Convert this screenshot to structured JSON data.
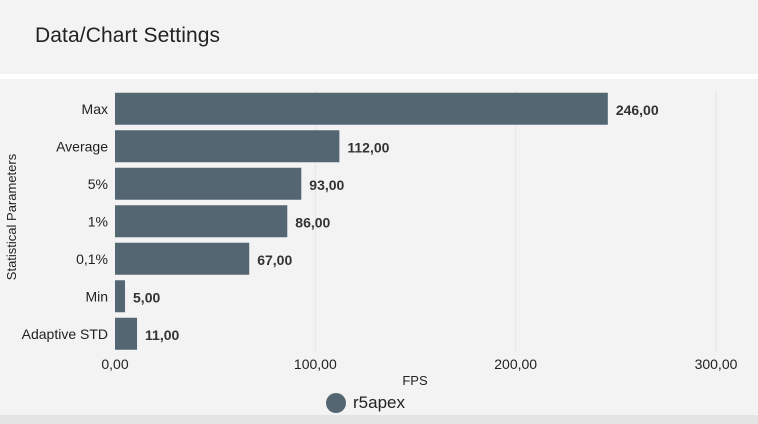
{
  "page": {
    "title": "Data/Chart Settings"
  },
  "chart_data": {
    "type": "bar",
    "orientation": "horizontal",
    "categories": [
      "Max",
      "Average",
      "5%",
      "1%",
      "0,1%",
      "Min",
      "Adaptive STD"
    ],
    "series": [
      {
        "name": "r5apex",
        "color": "#546672",
        "values": [
          246,
          112,
          93,
          86,
          67,
          5,
          11
        ],
        "labels": [
          "246,00",
          "112,00",
          "93,00",
          "86,00",
          "67,00",
          "5,00",
          "11,00"
        ]
      }
    ],
    "xlabel": "FPS",
    "ylabel": "Statistical Parameters",
    "xlim": [
      0,
      300
    ],
    "xticks": [
      0,
      100,
      200,
      300
    ],
    "xtick_labels": [
      "0,00",
      "100,00",
      "200,00",
      "300,00"
    ],
    "grid": true,
    "legend": "bottom-center"
  }
}
